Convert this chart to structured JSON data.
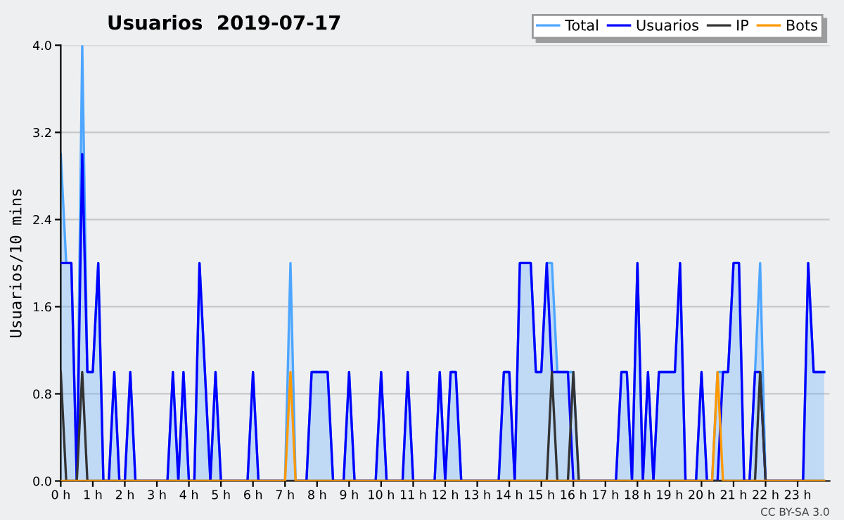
{
  "chart_data": {
    "type": "line",
    "title": "Usuarios  2019-07-17",
    "ylabel": "Usuarios/10 mins",
    "x": [
      0,
      0.17,
      0.33,
      0.5,
      0.67,
      0.83,
      1,
      1.17,
      1.33,
      1.5,
      1.67,
      1.83,
      2,
      2.17,
      2.33,
      2.5,
      2.67,
      2.83,
      3,
      3.17,
      3.33,
      3.5,
      3.67,
      3.83,
      4,
      4.17,
      4.33,
      4.5,
      4.67,
      4.83,
      5,
      5.17,
      5.33,
      5.5,
      5.67,
      5.83,
      6,
      6.17,
      6.33,
      6.5,
      6.67,
      6.83,
      7,
      7.17,
      7.33,
      7.5,
      7.67,
      7.83,
      8,
      8.17,
      8.33,
      8.5,
      8.67,
      8.83,
      9,
      9.17,
      9.33,
      9.5,
      9.67,
      9.83,
      10,
      10.17,
      10.33,
      10.5,
      10.67,
      10.83,
      11,
      11.17,
      11.33,
      11.5,
      11.67,
      11.83,
      12,
      12.17,
      12.33,
      12.5,
      12.67,
      12.83,
      13,
      13.17,
      13.33,
      13.5,
      13.67,
      13.83,
      14,
      14.17,
      14.33,
      14.5,
      14.67,
      14.83,
      15,
      15.17,
      15.33,
      15.5,
      15.67,
      15.83,
      16,
      16.17,
      16.33,
      16.5,
      16.67,
      16.83,
      17,
      17.17,
      17.33,
      17.5,
      17.67,
      17.83,
      18,
      18.17,
      18.33,
      18.5,
      18.67,
      18.83,
      19,
      19.17,
      19.33,
      19.5,
      19.67,
      19.83,
      20,
      20.17,
      20.33,
      20.5,
      20.67,
      20.83,
      21,
      21.17,
      21.33,
      21.5,
      21.67,
      21.83,
      22,
      22.17,
      22.33,
      22.5,
      22.67,
      22.83,
      23,
      23.17,
      23.33,
      23.5,
      23.67,
      23.83
    ],
    "series": [
      {
        "name": "Total",
        "type": "area",
        "color": "#4da6ff",
        "values": [
          3,
          2,
          2,
          0,
          4,
          1,
          1,
          2,
          0,
          0,
          1,
          0,
          0,
          1,
          0,
          0,
          0,
          0,
          0,
          0,
          0,
          1,
          0,
          1,
          0,
          0,
          2,
          1,
          0,
          1,
          0,
          0,
          0,
          0,
          0,
          0,
          1,
          0,
          0,
          0,
          0,
          0,
          0,
          2,
          0,
          0,
          0,
          1,
          1,
          1,
          1,
          0,
          0,
          0,
          1,
          0,
          0,
          0,
          0,
          0,
          1,
          0,
          0,
          0,
          0,
          1,
          0,
          0,
          0,
          0,
          0,
          1,
          0,
          1,
          1,
          0,
          0,
          0,
          0,
          0,
          0,
          0,
          0,
          1,
          1,
          0,
          2,
          2,
          2,
          1,
          1,
          2,
          2,
          1,
          1,
          1,
          1,
          0,
          0,
          0,
          0,
          0,
          0,
          0,
          0,
          1,
          1,
          0,
          2,
          0,
          1,
          0,
          1,
          1,
          1,
          1,
          2,
          0,
          0,
          0,
          1,
          0,
          0,
          1,
          1,
          1,
          2,
          2,
          0,
          0,
          1,
          2,
          0,
          0,
          0,
          0,
          0,
          0,
          0,
          0,
          2,
          1,
          1,
          1
        ]
      },
      {
        "name": "Usuarios",
        "color": "#0000ff",
        "values": [
          2,
          2,
          2,
          0,
          3,
          1,
          1,
          2,
          0,
          0,
          1,
          0,
          0,
          1,
          0,
          0,
          0,
          0,
          0,
          0,
          0,
          1,
          0,
          1,
          0,
          0,
          2,
          1,
          0,
          1,
          0,
          0,
          0,
          0,
          0,
          0,
          1,
          0,
          0,
          0,
          0,
          0,
          0,
          null,
          0,
          0,
          0,
          1,
          1,
          1,
          1,
          0,
          0,
          0,
          1,
          0,
          0,
          0,
          0,
          0,
          1,
          0,
          0,
          0,
          0,
          1,
          0,
          0,
          0,
          0,
          0,
          1,
          0,
          1,
          1,
          0,
          0,
          0,
          0,
          0,
          0,
          0,
          0,
          1,
          1,
          0,
          2,
          2,
          2,
          1,
          1,
          2,
          1,
          1,
          1,
          1,
          0,
          0,
          0,
          0,
          0,
          0,
          0,
          0,
          0,
          1,
          1,
          0,
          2,
          0,
          1,
          0,
          1,
          1,
          1,
          1,
          2,
          0,
          0,
          0,
          1,
          0,
          0,
          0,
          1,
          1,
          2,
          2,
          0,
          0,
          1,
          1,
          0,
          0,
          0,
          0,
          0,
          0,
          0,
          0,
          2,
          1,
          1,
          1
        ]
      },
      {
        "name": "IP",
        "color": "#333333",
        "values": [
          1,
          0,
          0,
          0,
          1,
          0,
          0,
          0,
          0,
          0,
          0,
          0,
          0,
          0,
          0,
          0,
          0,
          0,
          0,
          0,
          0,
          0,
          0,
          0,
          0,
          0,
          0,
          0,
          0,
          0,
          0,
          0,
          0,
          0,
          0,
          0,
          0,
          0,
          0,
          0,
          0,
          0,
          0,
          0,
          0,
          0,
          0,
          0,
          0,
          0,
          0,
          0,
          0,
          0,
          0,
          0,
          0,
          0,
          0,
          0,
          0,
          0,
          0,
          0,
          0,
          0,
          0,
          0,
          0,
          0,
          0,
          0,
          0,
          0,
          0,
          0,
          0,
          0,
          0,
          0,
          0,
          0,
          0,
          0,
          0,
          0,
          0,
          0,
          0,
          0,
          0,
          0,
          1,
          0,
          0,
          0,
          1,
          0,
          0,
          0,
          0,
          0,
          0,
          0,
          0,
          0,
          0,
          0,
          0,
          0,
          0,
          0,
          0,
          0,
          0,
          0,
          0,
          0,
          0,
          0,
          0,
          0,
          0,
          0,
          0,
          0,
          0,
          0,
          0,
          0,
          0,
          1,
          0,
          0,
          0,
          0,
          0,
          0,
          0,
          0,
          0,
          0,
          0,
          0
        ]
      },
      {
        "name": "Bots",
        "color": "#ff9900",
        "values": [
          0,
          0,
          0,
          0,
          0,
          0,
          0,
          0,
          0,
          0,
          0,
          0,
          0,
          0,
          0,
          0,
          0,
          0,
          0,
          0,
          0,
          0,
          0,
          0,
          0,
          0,
          0,
          0,
          0,
          0,
          0,
          0,
          0,
          0,
          0,
          0,
          0,
          0,
          0,
          0,
          0,
          0,
          0,
          1,
          0,
          0,
          0,
          0,
          0,
          0,
          0,
          0,
          0,
          0,
          0,
          0,
          0,
          0,
          0,
          0,
          0,
          0,
          0,
          0,
          0,
          0,
          0,
          0,
          0,
          0,
          0,
          0,
          0,
          0,
          0,
          0,
          0,
          0,
          0,
          0,
          0,
          0,
          0,
          0,
          0,
          0,
          0,
          0,
          0,
          0,
          0,
          0,
          0,
          0,
          0,
          0,
          0,
          0,
          0,
          0,
          0,
          0,
          0,
          0,
          0,
          0,
          0,
          0,
          0,
          0,
          0,
          0,
          0,
          0,
          0,
          0,
          0,
          0,
          0,
          0,
          0,
          0,
          0,
          1,
          0,
          0,
          0,
          0,
          0,
          0,
          0,
          0,
          0,
          0,
          0,
          0,
          0,
          0,
          0,
          0,
          0,
          0,
          0,
          0
        ]
      }
    ],
    "xlim": [
      0,
      24
    ],
    "ylim": [
      0,
      4
    ],
    "xticks": [
      {
        "value": 0,
        "label": "0 h"
      },
      {
        "value": 1,
        "label": "1 h"
      },
      {
        "value": 2,
        "label": "2 h"
      },
      {
        "value": 3,
        "label": "3 h"
      },
      {
        "value": 4,
        "label": "4 h"
      },
      {
        "value": 5,
        "label": "5 h"
      },
      {
        "value": 6,
        "label": "6 h"
      },
      {
        "value": 7,
        "label": "7 h"
      },
      {
        "value": 8,
        "label": "8 h"
      },
      {
        "value": 9,
        "label": "9 h"
      },
      {
        "value": 10,
        "label": "10 h"
      },
      {
        "value": 11,
        "label": "11 h"
      },
      {
        "value": 12,
        "label": "12 h"
      },
      {
        "value": 13,
        "label": "13 h"
      },
      {
        "value": 14,
        "label": "14 h"
      },
      {
        "value": 15,
        "label": "15 h"
      },
      {
        "value": 16,
        "label": "16 h"
      },
      {
        "value": 17,
        "label": "17 h"
      },
      {
        "value": 18,
        "label": "18 h"
      },
      {
        "value": 19,
        "label": "19 h"
      },
      {
        "value": 20,
        "label": "20 h"
      },
      {
        "value": 21,
        "label": "21 h"
      },
      {
        "value": 22,
        "label": "22 h"
      },
      {
        "value": 23,
        "label": "23 h"
      }
    ],
    "yticks": [
      {
        "value": 0,
        "label": "0.0"
      },
      0.8,
      1.6,
      2.4,
      3.2,
      {
        "value": 4,
        "label": "4.0"
      }
    ],
    "grid": "y",
    "legend": "top right",
    "marker": "none",
    "line_style": "solid",
    "annotations": [
      "CC BY-SA 3.0"
    ]
  }
}
